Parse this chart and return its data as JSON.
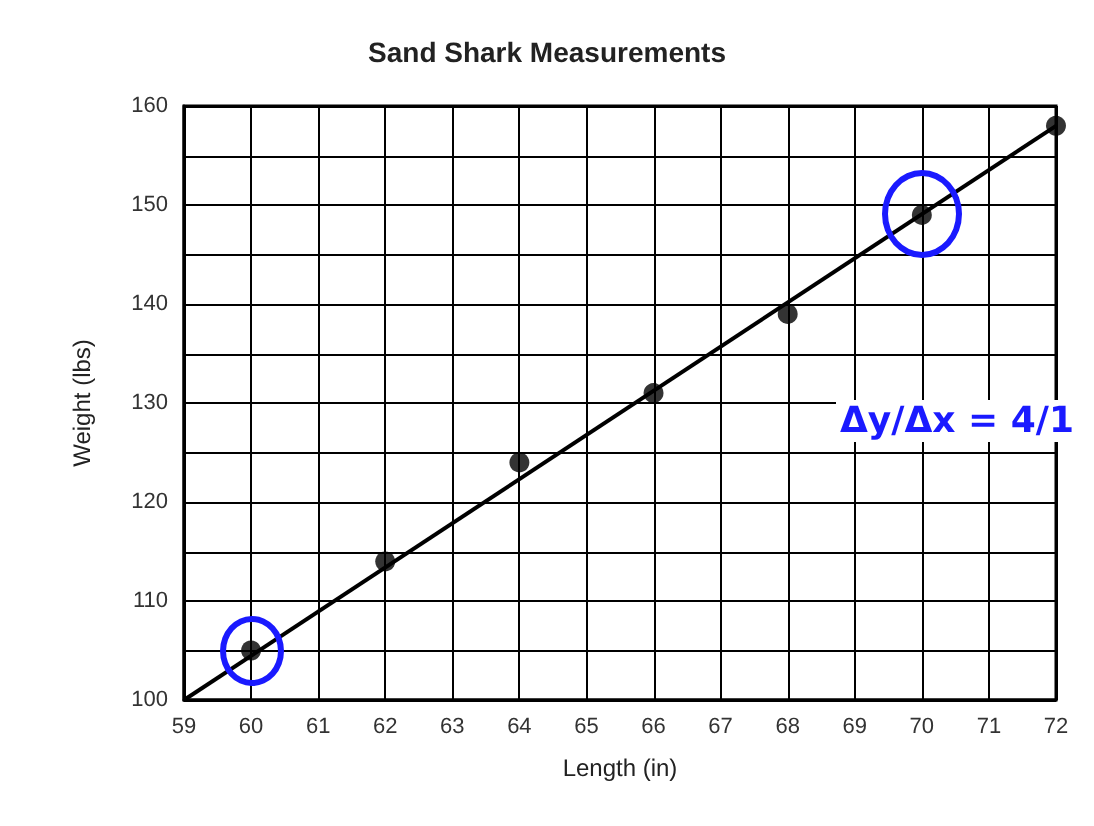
{
  "chart_data": {
    "type": "scatter",
    "title": "Sand Shark Measurements",
    "xlabel": "Length (in)",
    "ylabel": "Weight (lbs)",
    "xlim": [
      59,
      72
    ],
    "xticks": [
      59,
      60,
      61,
      62,
      63,
      64,
      65,
      66,
      67,
      68,
      69,
      70,
      71,
      72
    ],
    "ylim": [
      100,
      160
    ],
    "yticks": [
      100,
      {
        "value": 105,
        "label": null
      },
      110,
      {
        "value": 115,
        "label": null
      },
      120,
      {
        "value": 125,
        "label": null
      },
      130,
      {
        "value": 135,
        "label": null
      },
      140,
      {
        "value": 145,
        "label": null
      },
      150,
      {
        "value": 155,
        "label": null
      },
      160
    ],
    "grid": true,
    "series": [
      {
        "color": "#000000",
        "marker": "circle",
        "x": [
          60,
          62,
          64,
          66,
          68,
          70,
          72
        ],
        "values": [
          105,
          114,
          124,
          131,
          139,
          149,
          158
        ]
      },
      {
        "type": "line",
        "color": "#000000",
        "marker": "none",
        "line_style": "solid",
        "x": [
          59,
          72
        ],
        "values": [
          100,
          158
        ]
      }
    ],
    "annotations": [
      "Δy/Δx = 4/1"
    ]
  }
}
